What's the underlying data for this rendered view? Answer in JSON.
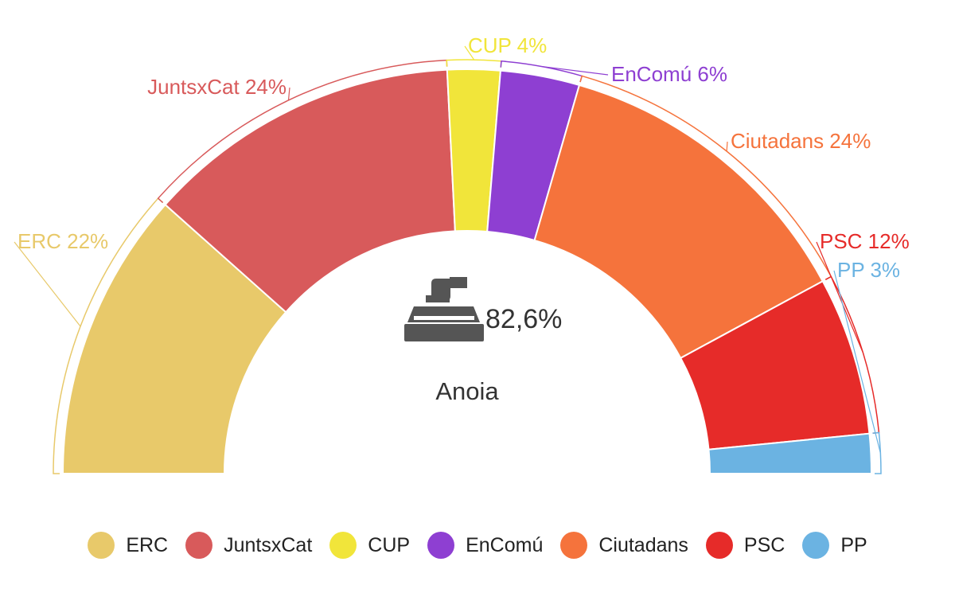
{
  "chart_data": {
    "type": "pie",
    "subtype": "semicircle-parliament",
    "title": "",
    "region": "Anoia",
    "turnout": "82,6%",
    "turnout_icon": "ballot-box-icon",
    "legend_position": "bottom",
    "series": [
      {
        "name": "ERC",
        "label": "ERC 22%",
        "value": 22,
        "color": "#e8c96a"
      },
      {
        "name": "JuntsxCat",
        "label": "JuntsxCat 24%",
        "value": 24,
        "color": "#d85a5b"
      },
      {
        "name": "CUP",
        "label": "CUP 4%",
        "value": 4,
        "color": "#f1e53a"
      },
      {
        "name": "EnComú",
        "label": "EnComú 6%",
        "value": 6,
        "color": "#8e3fd2"
      },
      {
        "name": "Ciutadans",
        "label": "Ciutadans 24%",
        "value": 24,
        "color": "#f5733c"
      },
      {
        "name": "PSC",
        "label": "PSC 12%",
        "value": 12,
        "color": "#e62b29"
      },
      {
        "name": "PP",
        "label": "PP 3%",
        "value": 3,
        "color": "#6bb3e2"
      }
    ]
  }
}
